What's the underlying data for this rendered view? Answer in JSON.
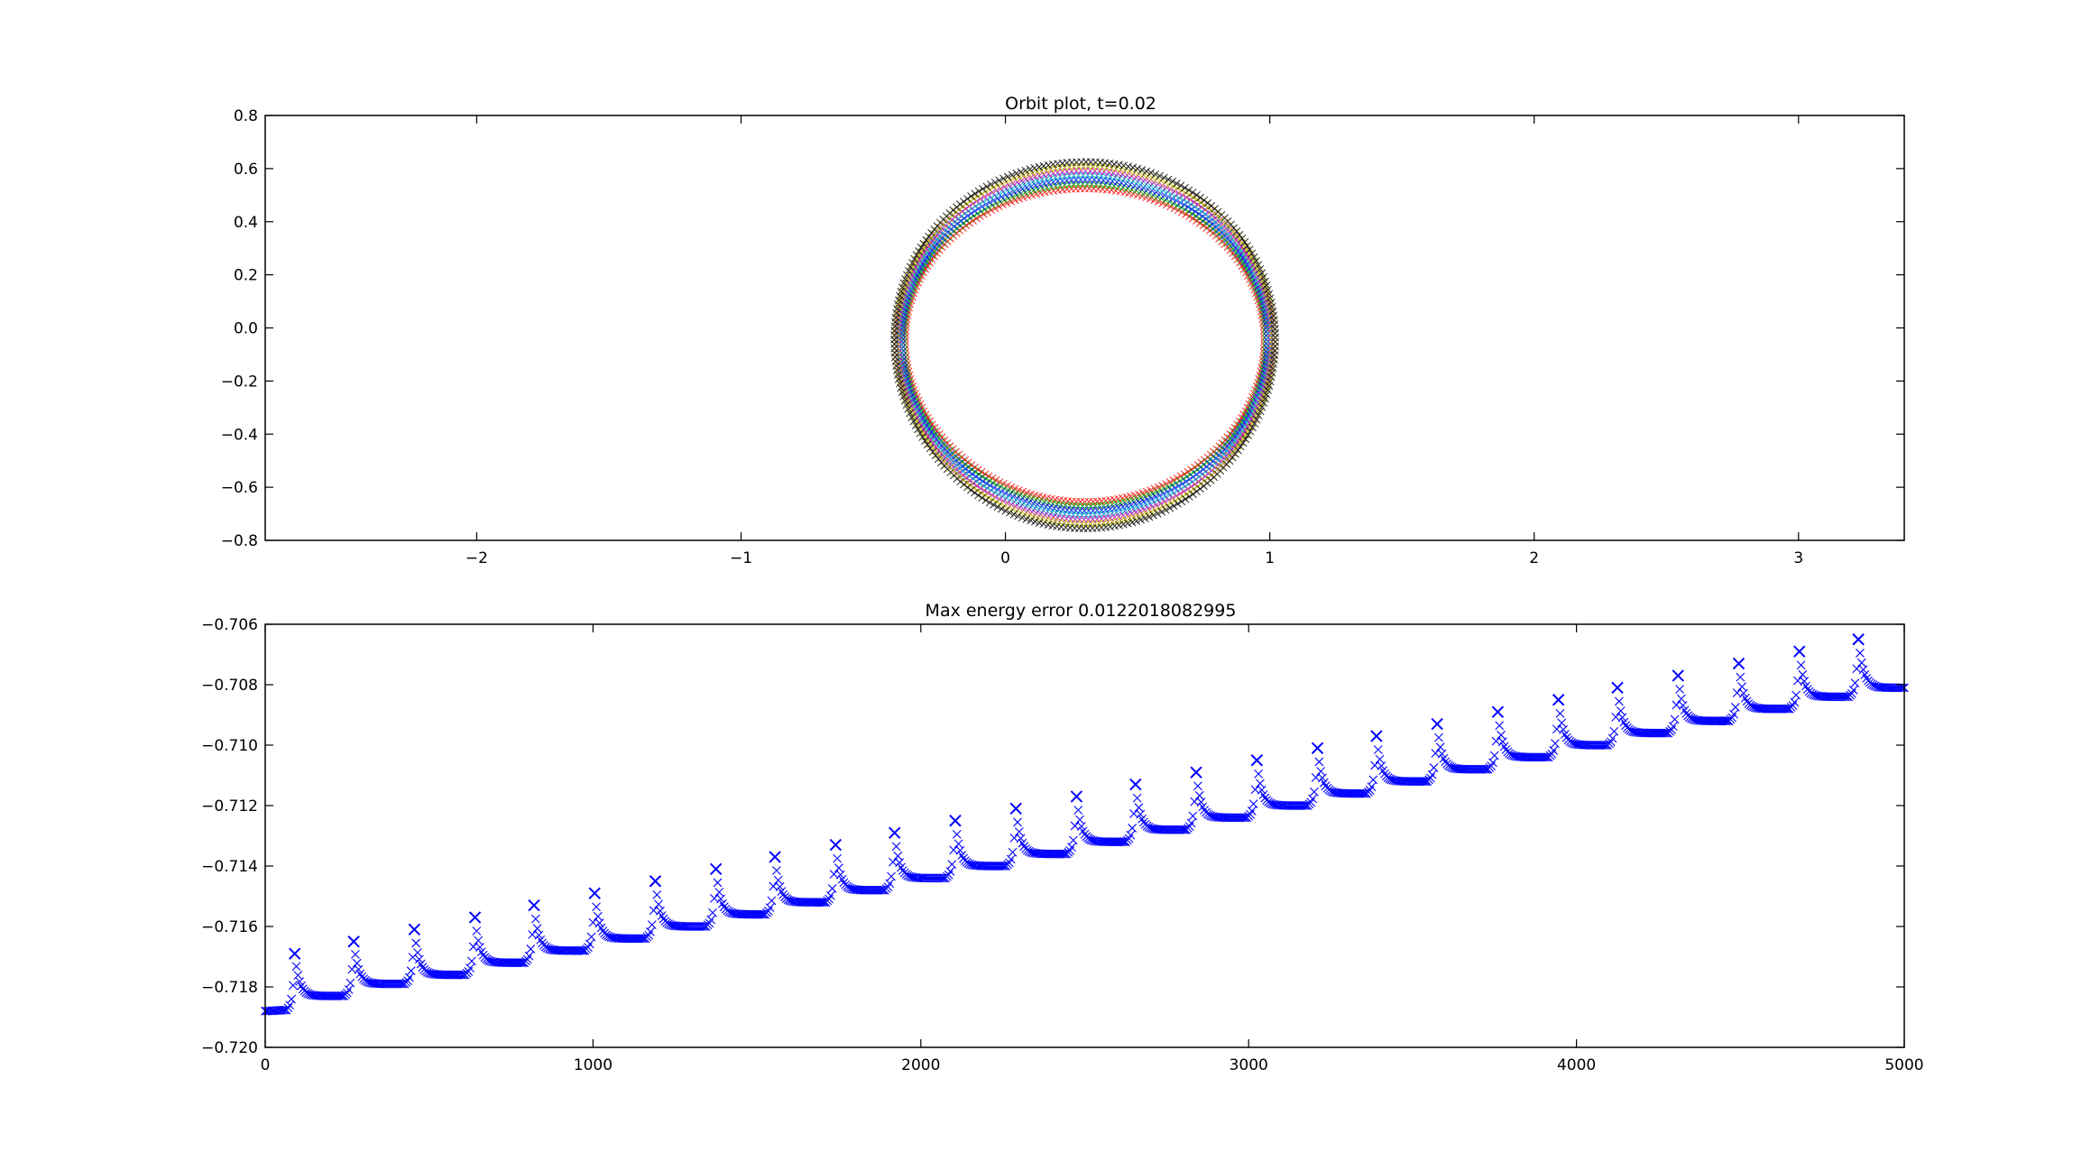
{
  "chart_data": [
    {
      "type": "scatter",
      "title": "Orbit plot, t=0.02",
      "xlabel": "",
      "ylabel": "",
      "xlim": [
        -2.8,
        3.4
      ],
      "ylim": [
        -0.8,
        0.8
      ],
      "xticks": [
        -2,
        -1,
        0,
        1,
        2,
        3
      ],
      "xtick_labels": [
        "−2",
        "−1",
        "0",
        "1",
        "2",
        "3"
      ],
      "yticks": [
        -0.8,
        -0.6,
        -0.4,
        -0.2,
        0.0,
        0.2,
        0.4,
        0.6,
        0.8
      ],
      "ytick_labels": [
        "−0.8",
        "−0.6",
        "−0.4",
        "−0.2",
        "0.0",
        "0.2",
        "0.4",
        "0.6",
        "0.8"
      ],
      "grid": false,
      "marker": "x",
      "orbit": {
        "center_x": 0.3,
        "center_y": -0.065,
        "inner_semi_axis_x": 0.68,
        "inner_semi_axis_y": 0.59,
        "outer_semi_axis_x": 0.72,
        "outer_semi_axis_y": 0.69,
        "colors": [
          "#ff0000",
          "#00aa00",
          "#0000ff",
          "#00bfbf",
          "#bf00bf",
          "#bfbf00",
          "#000000"
        ]
      }
    },
    {
      "type": "line",
      "title": "Max energy error 0.0122018082995",
      "xlabel": "",
      "ylabel": "",
      "xlim": [
        0,
        5000
      ],
      "ylim": [
        -0.72,
        -0.706
      ],
      "xticks": [
        0,
        1000,
        2000,
        3000,
        4000,
        5000
      ],
      "xtick_labels": [
        "0",
        "1000",
        "2000",
        "3000",
        "4000",
        "5000"
      ],
      "yticks": [
        -0.72,
        -0.718,
        -0.716,
        -0.714,
        -0.712,
        -0.71,
        -0.708,
        -0.706
      ],
      "ytick_labels": [
        "−0.720",
        "−0.718",
        "−0.716",
        "−0.714",
        "−0.712",
        "−0.710",
        "−0.708",
        "−0.706"
      ],
      "grid": false,
      "marker": "x",
      "series_color": "#0000ff",
      "start_value": -0.7188,
      "spikes": [
        {
          "x": 90,
          "peak": -0.7169,
          "base": -0.7183
        },
        {
          "x": 270,
          "peak": -0.7165,
          "base": -0.7179
        },
        {
          "x": 455,
          "peak": -0.7161,
          "base": -0.7176
        },
        {
          "x": 640,
          "peak": -0.7157,
          "base": -0.7172
        },
        {
          "x": 820,
          "peak": -0.7153,
          "base": -0.7168
        },
        {
          "x": 1005,
          "peak": -0.7149,
          "base": -0.7164
        },
        {
          "x": 1190,
          "peak": -0.7145,
          "base": -0.716
        },
        {
          "x": 1375,
          "peak": -0.7141,
          "base": -0.7156
        },
        {
          "x": 1555,
          "peak": -0.7137,
          "base": -0.7152
        },
        {
          "x": 1740,
          "peak": -0.7133,
          "base": -0.7148
        },
        {
          "x": 1920,
          "peak": -0.7129,
          "base": -0.7144
        },
        {
          "x": 2105,
          "peak": -0.7125,
          "base": -0.714
        },
        {
          "x": 2290,
          "peak": -0.7121,
          "base": -0.7136
        },
        {
          "x": 2475,
          "peak": -0.7117,
          "base": -0.7132
        },
        {
          "x": 2655,
          "peak": -0.7113,
          "base": -0.7128
        },
        {
          "x": 2840,
          "peak": -0.7109,
          "base": -0.7124
        },
        {
          "x": 3025,
          "peak": -0.7105,
          "base": -0.712
        },
        {
          "x": 3210,
          "peak": -0.7101,
          "base": -0.7116
        },
        {
          "x": 3390,
          "peak": -0.7097,
          "base": -0.7112
        },
        {
          "x": 3575,
          "peak": -0.7093,
          "base": -0.7108
        },
        {
          "x": 3760,
          "peak": -0.7089,
          "base": -0.7104
        },
        {
          "x": 3945,
          "peak": -0.7085,
          "base": -0.71
        },
        {
          "x": 4125,
          "peak": -0.7081,
          "base": -0.7096
        },
        {
          "x": 4310,
          "peak": -0.7077,
          "base": -0.7092
        },
        {
          "x": 4495,
          "peak": -0.7073,
          "base": -0.7088
        },
        {
          "x": 4680,
          "peak": -0.7069,
          "base": -0.7084
        },
        {
          "x": 4860,
          "peak": -0.7065,
          "base": -0.708
        }
      ],
      "end_value": -0.7081
    }
  ]
}
